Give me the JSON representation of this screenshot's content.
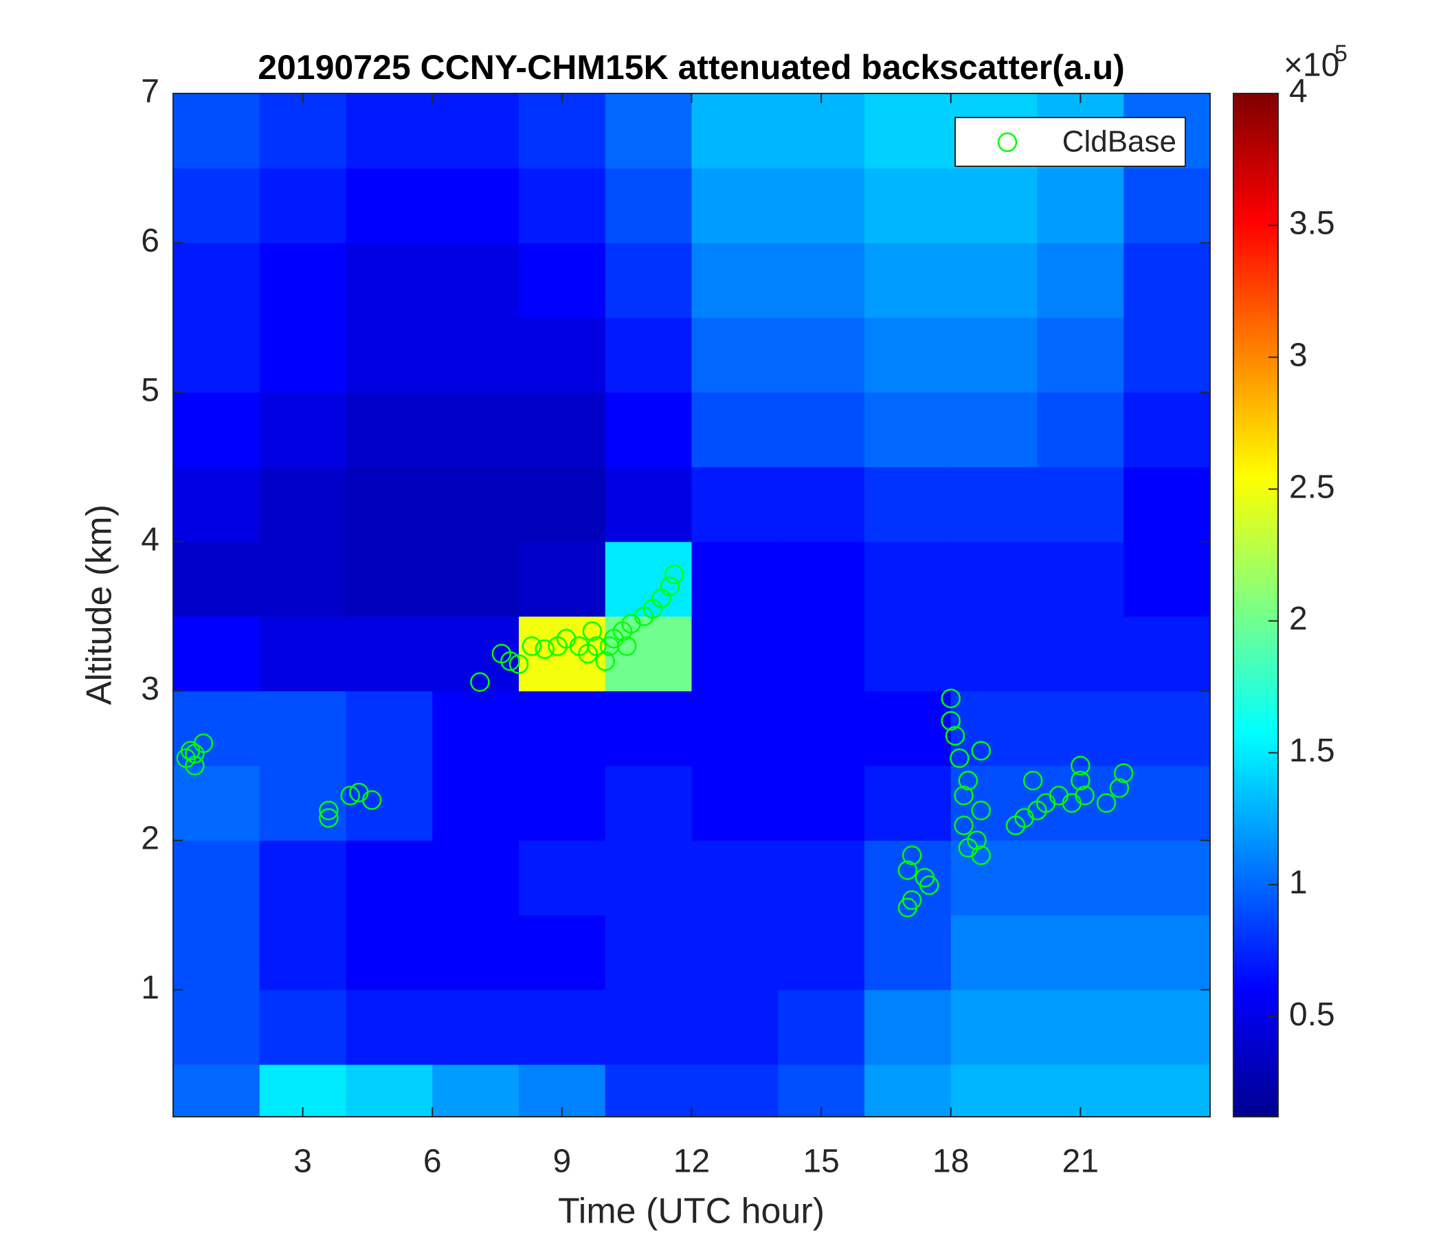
{
  "chart_data": {
    "type": "heatmap",
    "title": "20190725 CCNY-CHM15K attenuated backscatter(a.u)",
    "xlabel": "Time (UTC hour)",
    "ylabel": "Altitude (km)",
    "xlim": [
      0,
      24
    ],
    "ylim": [
      0.15,
      7
    ],
    "xticks": [
      3,
      6,
      9,
      12,
      15,
      18,
      21
    ],
    "yticks": [
      1,
      2,
      3,
      4,
      5,
      6,
      7
    ],
    "colormap": "jet",
    "clim": [
      0.12,
      4
    ],
    "cticks": [
      0.5,
      1,
      1.5,
      2,
      2.5,
      3,
      3.5,
      4
    ],
    "colorbar_scale": {
      "text": "×10",
      "exponent": "5"
    },
    "x": [
      0,
      2,
      4,
      6,
      8,
      10,
      12,
      14,
      16,
      18,
      20,
      22,
      24
    ],
    "y": [
      0.15,
      0.5,
      1,
      1.5,
      2,
      2.5,
      3,
      3.5,
      4,
      4.5,
      5,
      5.5,
      6,
      6.5,
      7
    ],
    "z": [
      [
        1.0,
        1.5,
        1.4,
        1.2,
        1.1,
        0.8,
        0.8,
        0.9,
        1.2,
        1.3,
        1.3,
        1.3
      ],
      [
        0.9,
        0.8,
        0.7,
        0.7,
        0.7,
        0.7,
        0.7,
        0.8,
        1.1,
        1.2,
        1.2,
        1.2
      ],
      [
        0.9,
        0.7,
        0.6,
        0.6,
        0.6,
        0.7,
        0.7,
        0.7,
        0.9,
        1.1,
        1.1,
        1.1
      ],
      [
        0.9,
        0.7,
        0.6,
        0.6,
        0.7,
        0.7,
        0.7,
        0.7,
        0.9,
        1.0,
        1.0,
        1.0
      ],
      [
        1.0,
        0.9,
        0.8,
        0.6,
        0.6,
        0.7,
        0.6,
        0.6,
        0.7,
        0.9,
        0.9,
        0.9
      ],
      [
        0.9,
        0.9,
        0.8,
        0.6,
        0.6,
        0.6,
        0.6,
        0.6,
        0.6,
        0.8,
        0.8,
        0.8
      ],
      [
        0.6,
        0.5,
        0.5,
        0.5,
        2.5,
        2.0,
        0.6,
        0.6,
        0.7,
        0.7,
        0.7,
        0.7
      ],
      [
        0.4,
        0.4,
        0.35,
        0.35,
        0.4,
        1.5,
        0.6,
        0.6,
        0.7,
        0.7,
        0.7,
        0.6
      ],
      [
        0.5,
        0.4,
        0.35,
        0.35,
        0.35,
        0.5,
        0.7,
        0.7,
        0.8,
        0.8,
        0.8,
        0.6
      ],
      [
        0.6,
        0.5,
        0.4,
        0.4,
        0.4,
        0.6,
        0.9,
        0.9,
        1.0,
        1.0,
        0.9,
        0.7
      ],
      [
        0.7,
        0.6,
        0.5,
        0.5,
        0.5,
        0.7,
        1.0,
        1.0,
        1.1,
        1.1,
        1.0,
        0.8
      ],
      [
        0.7,
        0.6,
        0.5,
        0.5,
        0.6,
        0.8,
        1.1,
        1.1,
        1.2,
        1.2,
        1.1,
        0.8
      ],
      [
        0.8,
        0.7,
        0.6,
        0.6,
        0.7,
        0.9,
        1.2,
        1.2,
        1.3,
        1.3,
        1.2,
        0.9
      ],
      [
        0.9,
        0.8,
        0.7,
        0.7,
        0.8,
        1.0,
        1.3,
        1.3,
        1.4,
        1.4,
        1.3,
        1.0
      ]
    ],
    "legend": "top-right",
    "series": [
      {
        "type": "scatter",
        "name": "CldBase",
        "color": "#00ff00",
        "x": [
          0.3,
          0.4,
          0.5,
          0.7,
          0.5,
          3.6,
          3.6,
          4.1,
          4.3,
          4.6,
          7.1,
          7.6,
          7.8,
          8.0,
          8.3,
          8.6,
          8.9,
          9.1,
          9.4,
          9.6,
          9.8,
          10.0,
          10.2,
          10.4,
          10.6,
          10.9,
          11.1,
          11.3,
          11.5,
          11.6,
          9.7,
          10.1,
          10.5,
          17.0,
          17.1,
          17.0,
          17.1,
          17.5,
          17.4,
          18.0,
          18.0,
          18.1,
          18.2,
          18.3,
          18.3,
          18.4,
          18.6,
          18.7,
          18.7,
          18.7,
          18.4,
          19.5,
          19.7,
          19.9,
          20.0,
          20.2,
          20.5,
          20.8,
          21.0,
          21.0,
          21.1,
          21.6,
          21.9,
          22.0
        ],
        "values": [
          2.55,
          2.6,
          2.5,
          2.65,
          2.58,
          2.2,
          2.15,
          2.3,
          2.32,
          2.27,
          3.06,
          3.25,
          3.2,
          3.18,
          3.3,
          3.28,
          3.3,
          3.35,
          3.3,
          3.25,
          3.3,
          3.2,
          3.35,
          3.4,
          3.45,
          3.5,
          3.55,
          3.62,
          3.7,
          3.78,
          3.4,
          3.3,
          3.3,
          1.55,
          1.6,
          1.8,
          1.9,
          1.7,
          1.75,
          2.95,
          2.8,
          2.7,
          2.55,
          2.3,
          2.1,
          1.95,
          2.0,
          1.9,
          2.2,
          2.6,
          2.4,
          2.1,
          2.15,
          2.4,
          2.2,
          2.25,
          2.3,
          2.25,
          2.4,
          2.5,
          2.3,
          2.25,
          2.35,
          2.45
        ]
      }
    ]
  }
}
